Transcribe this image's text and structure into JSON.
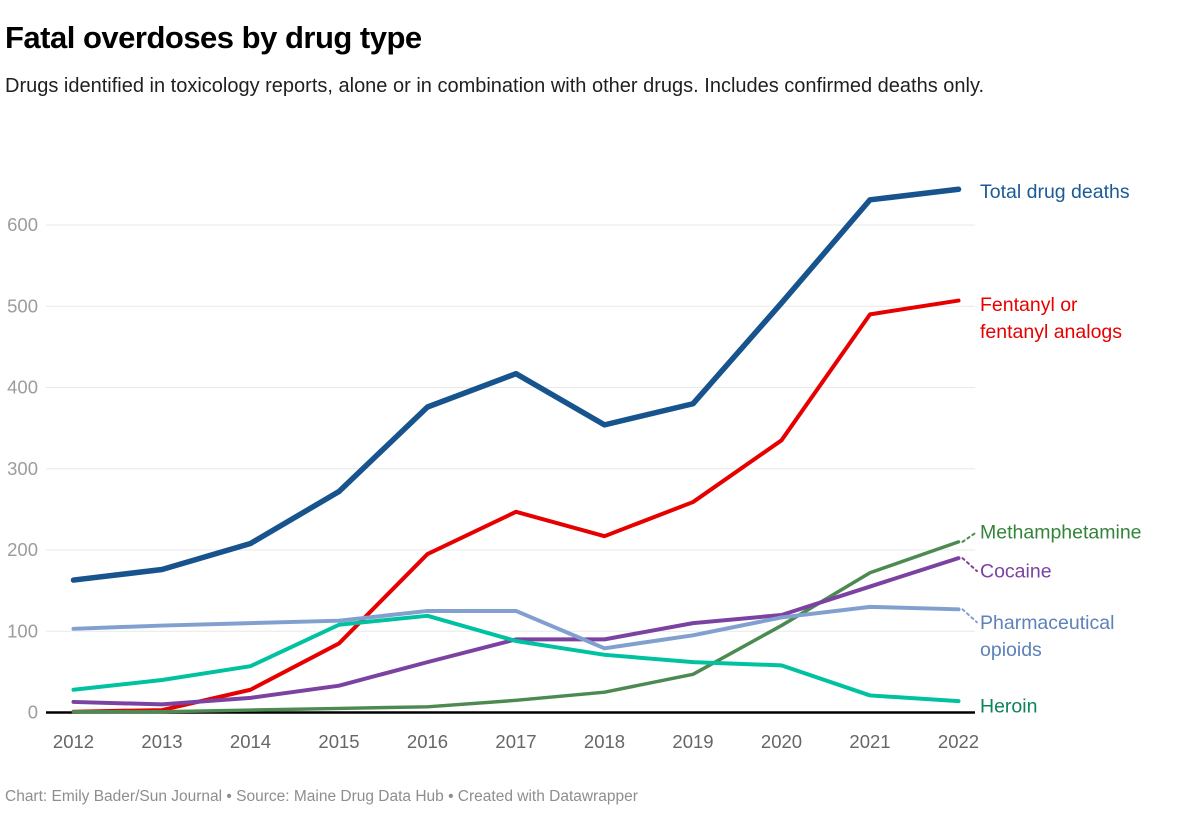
{
  "header": {
    "title": "Fatal overdoses by drug type",
    "subtitle": "Drugs identified in toxicology reports, alone or in combination with other drugs. Includes confirmed deaths only."
  },
  "footer": {
    "credit": "Chart: Emily Bader/Sun Journal • Source: Maine Drug Data Hub • Created with Datawrapper"
  },
  "colors": {
    "grid": "#e8e8e8",
    "axis": "#000000",
    "y_tick_text": "#9c9c9c",
    "x_tick_text": "#666666"
  },
  "chart_data": {
    "type": "line",
    "title": "Fatal overdoses by drug type",
    "x": [
      2012,
      2013,
      2014,
      2015,
      2016,
      2017,
      2018,
      2019,
      2020,
      2021,
      2022
    ],
    "ylim": [
      0,
      650
    ],
    "yticks": [
      0,
      100,
      200,
      300,
      400,
      500,
      600
    ],
    "grid": true,
    "legend_position": "right-of-line-ends",
    "series": [
      {
        "name": "Total drug deaths",
        "label_lines": [
          "Total drug deaths"
        ],
        "color": "#17538d",
        "label_color": "#1a5a96",
        "width": 5.5,
        "label_dy": 2,
        "connector": false,
        "values": [
          163,
          176,
          208,
          272,
          376,
          417,
          354,
          380,
          504,
          631,
          644
        ]
      },
      {
        "name": "Fentanyl or fentanyl analogs",
        "label_lines": [
          "Fentanyl or",
          "fentanyl analogs"
        ],
        "color": "#e60000",
        "label_color": "#e60000",
        "width": 4,
        "label_dy": 4,
        "connector": false,
        "values": [
          1,
          3,
          28,
          85,
          195,
          247,
          217,
          259,
          335,
          490,
          507
        ]
      },
      {
        "name": "Methamphetamine",
        "label_lines": [
          "Methamphetamine"
        ],
        "color": "#4d8a51",
        "label_color": "#33843b",
        "width": 3.5,
        "label_dy": -10,
        "connector": true,
        "values": [
          1,
          1,
          3,
          5,
          7,
          15,
          25,
          47,
          107,
          172,
          210
        ]
      },
      {
        "name": "Cocaine",
        "label_lines": [
          "Cocaine"
        ],
        "color": "#7c42a1",
        "label_color": "#7c42a1",
        "width": 4,
        "label_dy": 13,
        "connector": true,
        "values": [
          13,
          10,
          18,
          33,
          62,
          90,
          90,
          110,
          120,
          155,
          190
        ]
      },
      {
        "name": "Pharmaceutical opioids",
        "label_lines": [
          "Pharmaceutical",
          "opioids"
        ],
        "color": "#82a0cf",
        "label_color": "#5d81ba",
        "width": 4,
        "label_dy": 13,
        "connector": true,
        "values": [
          103,
          107,
          110,
          113,
          125,
          125,
          79,
          95,
          117,
          130,
          127
        ]
      },
      {
        "name": "Heroin",
        "label_lines": [
          "Heroin"
        ],
        "color": "#00c2a0",
        "label_color": "#0b8457",
        "width": 4,
        "label_dy": 5,
        "connector": false,
        "values": [
          28,
          40,
          57,
          108,
          119,
          88,
          71,
          62,
          58,
          21,
          14
        ]
      }
    ]
  }
}
